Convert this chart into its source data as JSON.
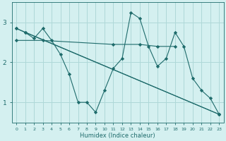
{
  "bg_color": "#d4f0f0",
  "grid_color": "#aed8d8",
  "line_color": "#1e6b6b",
  "xlabel": "Humidex (Indice chaleur)",
  "xlim": [
    -0.5,
    23.5
  ],
  "ylim": [
    0.5,
    3.5
  ],
  "yticks": [
    1,
    2,
    3
  ],
  "xticks": [
    0,
    1,
    2,
    3,
    4,
    5,
    6,
    7,
    8,
    9,
    10,
    11,
    12,
    13,
    14,
    15,
    16,
    17,
    18,
    19,
    20,
    21,
    22,
    23
  ],
  "series": [
    {
      "x": [
        0,
        1,
        2,
        3,
        4,
        5,
        6,
        7,
        8,
        9,
        10,
        11,
        12,
        13,
        14,
        15,
        16,
        17,
        18,
        19,
        20,
        21,
        22,
        23
      ],
      "y": [
        2.85,
        2.75,
        2.6,
        2.85,
        2.55,
        2.2,
        1.7,
        1.0,
        1.0,
        0.75,
        1.3,
        1.85,
        2.1,
        3.25,
        3.1,
        2.4,
        1.9,
        2.1,
        2.75,
        2.4,
        1.6,
        1.3,
        1.1,
        0.7
      ]
    },
    {
      "x": [
        0,
        3,
        11,
        14,
        16,
        18
      ],
      "y": [
        2.55,
        2.55,
        2.45,
        2.45,
        2.4,
        2.4
      ]
    },
    {
      "x": [
        0,
        23
      ],
      "y": [
        2.85,
        0.7
      ]
    },
    {
      "x": [
        1,
        23
      ],
      "y": [
        2.75,
        0.7
      ]
    }
  ]
}
